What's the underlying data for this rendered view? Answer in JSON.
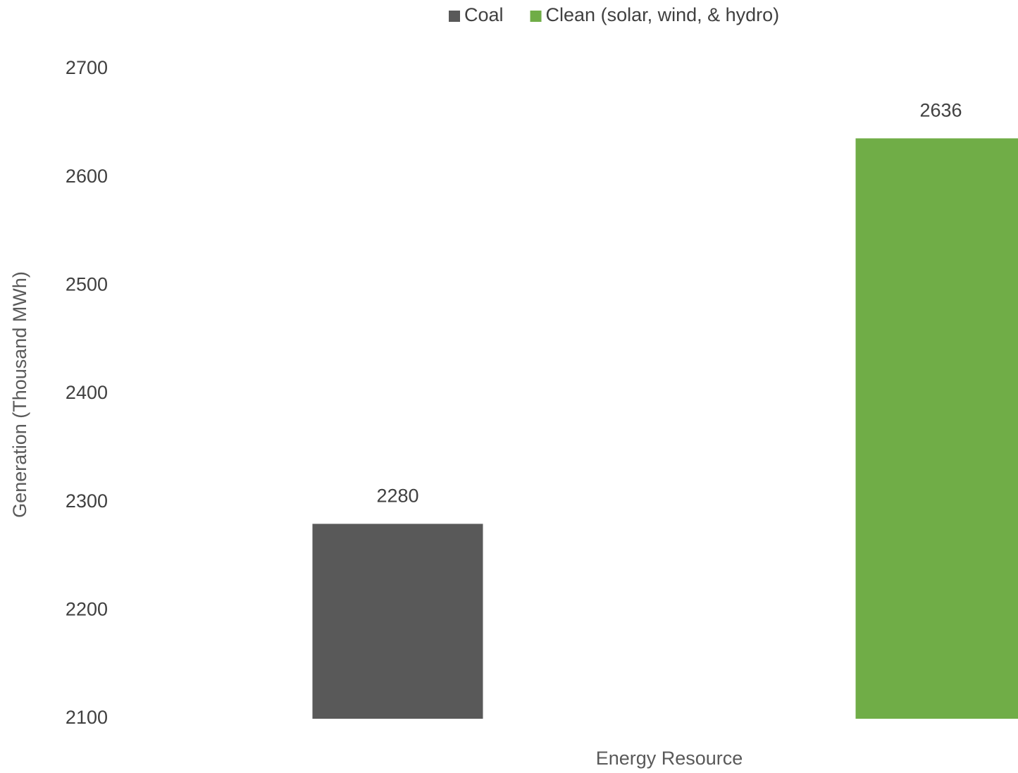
{
  "chart_data": {
    "type": "bar",
    "x_label": "Energy Resource",
    "y_label": "Generation (Thousand MWh)",
    "categories": [
      null
    ],
    "series": [
      {
        "name": "Coal",
        "color": "#595959",
        "values": [
          2280
        ]
      },
      {
        "name": "Clean (solar, wind, & hydro)",
        "color": "#70ad47",
        "values": [
          2636
        ]
      }
    ],
    "ylim": [
      2100,
      2700
    ],
    "yticks": [
      2100,
      2200,
      2300,
      2400,
      2500,
      2600,
      2700
    ],
    "grid": false,
    "legend": "top",
    "data_labels": true
  }
}
